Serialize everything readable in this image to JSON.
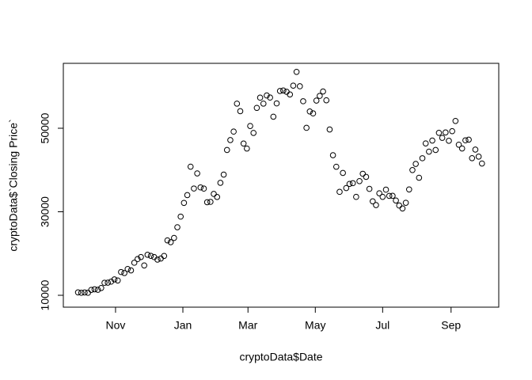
{
  "chart_data": {
    "type": "scatter",
    "x_label": "cryptoData$Date",
    "y_label": "cryptoData$`Closing Price`",
    "x": [
      -3,
      0,
      3,
      6,
      9,
      12,
      15,
      18,
      21,
      24,
      27,
      30,
      33,
      36,
      39,
      42,
      45,
      48,
      51,
      54,
      57,
      60,
      63,
      66,
      69,
      72,
      75,
      78,
      81,
      84,
      87,
      90,
      93,
      96,
      99,
      102,
      105,
      108,
      111,
      114,
      117,
      120,
      123,
      126,
      129,
      132,
      135,
      138,
      141,
      144,
      147,
      150,
      153,
      156,
      159,
      162,
      165,
      168,
      171,
      174,
      177,
      180,
      183,
      186,
      189,
      192,
      195,
      198,
      201,
      204,
      207,
      210,
      213,
      216,
      219,
      222,
      225,
      228,
      231,
      234,
      237,
      240,
      243,
      246,
      249,
      252,
      255,
      258,
      261,
      264,
      267,
      270,
      273,
      276,
      279,
      282,
      285,
      288,
      291,
      294,
      297,
      300,
      303,
      306,
      309,
      312,
      315,
      318,
      321,
      324,
      327,
      330,
      333,
      336,
      339,
      342,
      345,
      348,
      351,
      354,
      357,
      360,
      363
    ],
    "values": [
      10700,
      10600,
      10670,
      10600,
      11300,
      11430,
      11320,
      11750,
      12990,
      13030,
      13270,
      13800,
      13550,
      15570,
      15330,
      16300,
      15960,
      17800,
      18680,
      19160,
      17150,
      19700,
      19450,
      19150,
      18550,
      18800,
      19430,
      23150,
      22720,
      23730,
      26300,
      28840,
      32130,
      33990,
      40800,
      35570,
      39190,
      35830,
      35550,
      32290,
      32370,
      34270,
      33540,
      36930,
      38900,
      44800,
      47170,
      49200,
      55900,
      54090,
      46340,
      45140,
      50540,
      48880,
      54880,
      57330,
      55900,
      57850,
      57350,
      52770,
      55950,
      58920,
      59040,
      58730,
      58090,
      60200,
      63500,
      60050,
      56470,
      50100,
      54020,
      53560,
      56630,
      57750,
      58800,
      56700,
      49700,
      43540,
      40780,
      34770,
      39300,
      35680,
      36680,
      36850,
      33560,
      37340,
      39100,
      38350,
      35480,
      32500,
      31600,
      34430,
      33570,
      35290,
      33800,
      33820,
      32700,
      31500,
      30800,
      32150,
      35350,
      39990,
      41460,
      38150,
      42820,
      46370,
      44400,
      47050,
      44800,
      48900,
      47700,
      48990,
      47000,
      49300,
      51750,
      46060,
      45160,
      47110,
      47260,
      42840,
      44890,
      43210,
      41560
    ],
    "color": "#000000",
    "xlim": [
      -16.3,
      378.2
    ],
    "xticks": [
      {
        "value": 31,
        "label": "Nov"
      },
      {
        "value": 92,
        "label": "Jan"
      },
      {
        "value": 151,
        "label": "Mar"
      },
      {
        "value": 212,
        "label": "May"
      },
      {
        "value": 273,
        "label": "Jul"
      },
      {
        "value": 335,
        "label": "Sep"
      }
    ],
    "ylim": [
      7156,
      65545
    ],
    "yticks": [
      10000,
      30000,
      50000
    ]
  }
}
